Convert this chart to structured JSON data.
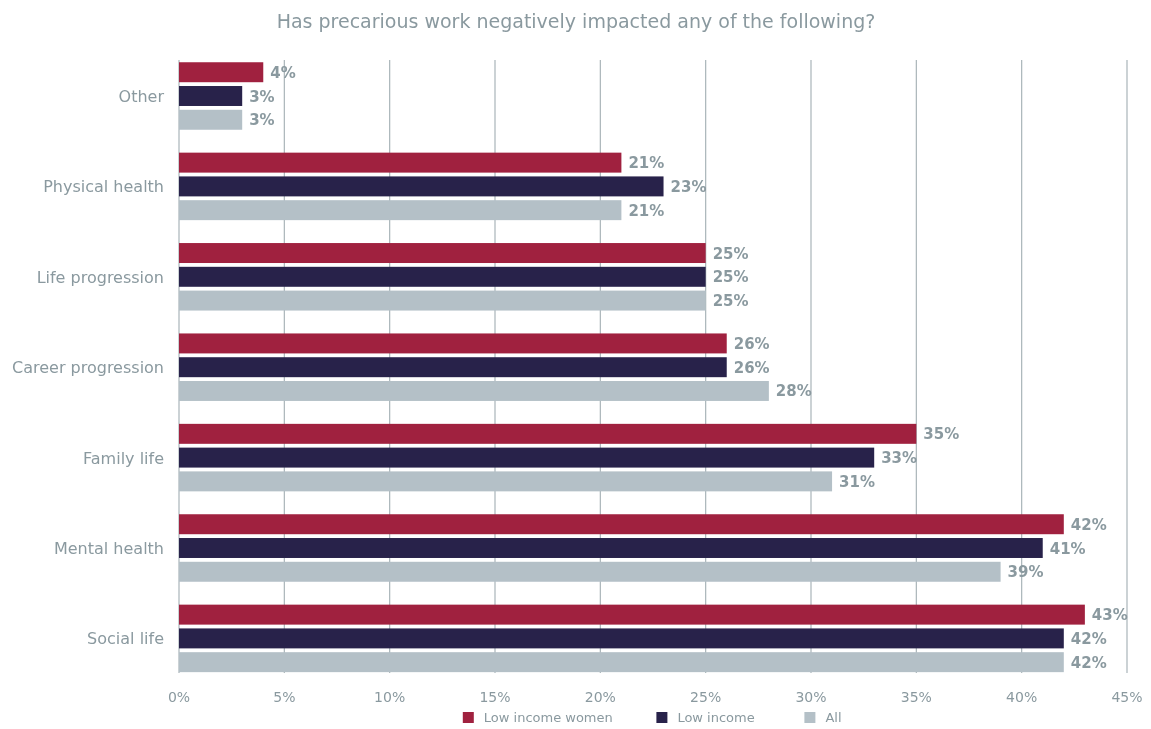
{
  "chart_data": {
    "type": "bar",
    "orientation": "horizontal",
    "title": "Has precarious work negatively impacted any of the following?",
    "categories": [
      "Other",
      "Physical health",
      "Life progression",
      "Career progression",
      "Family life",
      "Mental health",
      "Social life"
    ],
    "series": [
      {
        "name": "Low income women",
        "color": "#a0213f",
        "values": [
          4,
          21,
          25,
          26,
          35,
          42,
          43
        ],
        "value_labels": [
          "4%",
          "21%",
          "25%",
          "26%",
          "35%",
          "42%",
          "43%"
        ]
      },
      {
        "name": "Low income",
        "color": "#28224a",
        "values": [
          3,
          23,
          25,
          26,
          33,
          41,
          42
        ],
        "value_labels": [
          "3%",
          "23%",
          "25%",
          "26%",
          "33%",
          "41%",
          "42%"
        ]
      },
      {
        "name": "All",
        "color": "#b4c0c7",
        "values": [
          3,
          21,
          25,
          28,
          31,
          39,
          42
        ],
        "value_labels": [
          "3%",
          "21%",
          "25%",
          "28%",
          "31%",
          "39%",
          "42%"
        ]
      }
    ],
    "xlim": [
      0,
      45
    ],
    "xticks": [
      {
        "value": 0,
        "label": "0%"
      },
      {
        "value": 5,
        "label": "5%"
      },
      {
        "value": 10,
        "label": "10%"
      },
      {
        "value": 15,
        "label": "15%"
      },
      {
        "value": 20,
        "label": "20%"
      },
      {
        "value": 25,
        "label": "25%"
      },
      {
        "value": 30,
        "label": "30%"
      },
      {
        "value": 35,
        "label": "35%"
      },
      {
        "value": 40,
        "label": "40%"
      },
      {
        "value": 45,
        "label": "45%"
      }
    ],
    "grid": "x",
    "legend": "bottom"
  }
}
